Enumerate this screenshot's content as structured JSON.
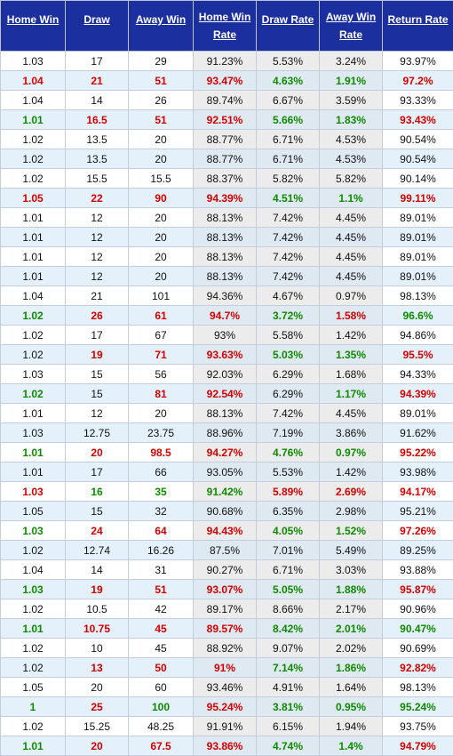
{
  "headers": [
    "Home Win",
    "Draw",
    "Away Win",
    "Home Win Rate",
    "Draw Rate",
    "Away Win Rate",
    "Return Rate"
  ],
  "colors": {
    "header_bg": "#1c2f9e",
    "red": "#d40000",
    "green": "#0f8a00",
    "row_alt": "#e4f1fb"
  },
  "rows": [
    {
      "cells": [
        "1.03",
        "17",
        "29",
        "91.23%",
        "5.53%",
        "3.24%",
        "93.97%"
      ],
      "colors": [
        "k",
        "k",
        "k",
        "k",
        "k",
        "k",
        "k"
      ]
    },
    {
      "cells": [
        "1.04",
        "21",
        "51",
        "93.47%",
        "4.63%",
        "1.91%",
        "97.2%"
      ],
      "colors": [
        "r",
        "r",
        "r",
        "r",
        "g",
        "g",
        "r"
      ]
    },
    {
      "cells": [
        "1.04",
        "14",
        "26",
        "89.74%",
        "6.67%",
        "3.59%",
        "93.33%"
      ],
      "colors": [
        "k",
        "k",
        "k",
        "k",
        "k",
        "k",
        "k"
      ]
    },
    {
      "cells": [
        "1.01",
        "16.5",
        "51",
        "92.51%",
        "5.66%",
        "1.83%",
        "93.43%"
      ],
      "colors": [
        "g",
        "r",
        "r",
        "r",
        "g",
        "g",
        "r"
      ]
    },
    {
      "cells": [
        "1.02",
        "13.5",
        "20",
        "88.77%",
        "6.71%",
        "4.53%",
        "90.54%"
      ],
      "colors": [
        "k",
        "k",
        "k",
        "k",
        "k",
        "k",
        "k"
      ]
    },
    {
      "cells": [
        "1.02",
        "13.5",
        "20",
        "88.77%",
        "6.71%",
        "4.53%",
        "90.54%"
      ],
      "colors": [
        "k",
        "k",
        "k",
        "k",
        "k",
        "k",
        "k"
      ]
    },
    {
      "cells": [
        "1.02",
        "15.5",
        "15.5",
        "88.37%",
        "5.82%",
        "5.82%",
        "90.14%"
      ],
      "colors": [
        "k",
        "k",
        "k",
        "k",
        "k",
        "k",
        "k"
      ]
    },
    {
      "cells": [
        "1.05",
        "22",
        "90",
        "94.39%",
        "4.51%",
        "1.1%",
        "99.11%"
      ],
      "colors": [
        "r",
        "r",
        "r",
        "r",
        "g",
        "g",
        "r"
      ]
    },
    {
      "cells": [
        "1.01",
        "12",
        "20",
        "88.13%",
        "7.42%",
        "4.45%",
        "89.01%"
      ],
      "colors": [
        "k",
        "k",
        "k",
        "k",
        "k",
        "k",
        "k"
      ]
    },
    {
      "cells": [
        "1.01",
        "12",
        "20",
        "88.13%",
        "7.42%",
        "4.45%",
        "89.01%"
      ],
      "colors": [
        "k",
        "k",
        "k",
        "k",
        "k",
        "k",
        "k"
      ]
    },
    {
      "cells": [
        "1.01",
        "12",
        "20",
        "88.13%",
        "7.42%",
        "4.45%",
        "89.01%"
      ],
      "colors": [
        "k",
        "k",
        "k",
        "k",
        "k",
        "k",
        "k"
      ]
    },
    {
      "cells": [
        "1.01",
        "12",
        "20",
        "88.13%",
        "7.42%",
        "4.45%",
        "89.01%"
      ],
      "colors": [
        "k",
        "k",
        "k",
        "k",
        "k",
        "k",
        "k"
      ]
    },
    {
      "cells": [
        "1.04",
        "21",
        "101",
        "94.36%",
        "4.67%",
        "0.97%",
        "98.13%"
      ],
      "colors": [
        "k",
        "k",
        "k",
        "k",
        "k",
        "k",
        "k"
      ]
    },
    {
      "cells": [
        "1.02",
        "26",
        "61",
        "94.7%",
        "3.72%",
        "1.58%",
        "96.6%"
      ],
      "colors": [
        "g",
        "r",
        "r",
        "r",
        "g",
        "r",
        "g"
      ]
    },
    {
      "cells": [
        "1.02",
        "17",
        "67",
        "93%",
        "5.58%",
        "1.42%",
        "94.86%"
      ],
      "colors": [
        "k",
        "k",
        "k",
        "k",
        "k",
        "k",
        "k"
      ]
    },
    {
      "cells": [
        "1.02",
        "19",
        "71",
        "93.63%",
        "5.03%",
        "1.35%",
        "95.5%"
      ],
      "colors": [
        "k",
        "r",
        "r",
        "r",
        "g",
        "g",
        "r"
      ]
    },
    {
      "cells": [
        "1.03",
        "15",
        "56",
        "92.03%",
        "6.29%",
        "1.68%",
        "94.33%"
      ],
      "colors": [
        "k",
        "k",
        "k",
        "k",
        "k",
        "k",
        "k"
      ]
    },
    {
      "cells": [
        "1.02",
        "15",
        "81",
        "92.54%",
        "6.29%",
        "1.17%",
        "94.39%"
      ],
      "colors": [
        "g",
        "k",
        "r",
        "r",
        "k",
        "g",
        "r"
      ]
    },
    {
      "cells": [
        "1.01",
        "12",
        "20",
        "88.13%",
        "7.42%",
        "4.45%",
        "89.01%"
      ],
      "colors": [
        "k",
        "k",
        "k",
        "k",
        "k",
        "k",
        "k"
      ]
    },
    {
      "cells": [
        "1.03",
        "12.75",
        "23.75",
        "88.96%",
        "7.19%",
        "3.86%",
        "91.62%"
      ],
      "colors": [
        "k",
        "k",
        "k",
        "k",
        "k",
        "k",
        "k"
      ]
    },
    {
      "cells": [
        "1.01",
        "20",
        "98.5",
        "94.27%",
        "4.76%",
        "0.97%",
        "95.22%"
      ],
      "colors": [
        "g",
        "r",
        "r",
        "r",
        "g",
        "g",
        "r"
      ]
    },
    {
      "cells": [
        "1.01",
        "17",
        "66",
        "93.05%",
        "5.53%",
        "1.42%",
        "93.98%"
      ],
      "colors": [
        "k",
        "k",
        "k",
        "k",
        "k",
        "k",
        "k"
      ]
    },
    {
      "cells": [
        "1.03",
        "16",
        "35",
        "91.42%",
        "5.89%",
        "2.69%",
        "94.17%"
      ],
      "colors": [
        "r",
        "g",
        "g",
        "g",
        "r",
        "r",
        "r"
      ]
    },
    {
      "cells": [
        "1.05",
        "15",
        "32",
        "90.68%",
        "6.35%",
        "2.98%",
        "95.21%"
      ],
      "colors": [
        "k",
        "k",
        "k",
        "k",
        "k",
        "k",
        "k"
      ]
    },
    {
      "cells": [
        "1.03",
        "24",
        "64",
        "94.43%",
        "4.05%",
        "1.52%",
        "97.26%"
      ],
      "colors": [
        "g",
        "r",
        "r",
        "r",
        "g",
        "g",
        "r"
      ]
    },
    {
      "cells": [
        "1.02",
        "12.74",
        "16.26",
        "87.5%",
        "7.01%",
        "5.49%",
        "89.25%"
      ],
      "colors": [
        "k",
        "k",
        "k",
        "k",
        "k",
        "k",
        "k"
      ]
    },
    {
      "cells": [
        "1.04",
        "14",
        "31",
        "90.27%",
        "6.71%",
        "3.03%",
        "93.88%"
      ],
      "colors": [
        "k",
        "k",
        "k",
        "k",
        "k",
        "k",
        "k"
      ]
    },
    {
      "cells": [
        "1.03",
        "19",
        "51",
        "93.07%",
        "5.05%",
        "1.88%",
        "95.87%"
      ],
      "colors": [
        "g",
        "r",
        "r",
        "r",
        "g",
        "g",
        "r"
      ]
    },
    {
      "cells": [
        "1.02",
        "10.5",
        "42",
        "89.17%",
        "8.66%",
        "2.17%",
        "90.96%"
      ],
      "colors": [
        "k",
        "k",
        "k",
        "k",
        "k",
        "k",
        "k"
      ]
    },
    {
      "cells": [
        "1.01",
        "10.75",
        "45",
        "89.57%",
        "8.42%",
        "2.01%",
        "90.47%"
      ],
      "colors": [
        "g",
        "r",
        "r",
        "r",
        "g",
        "g",
        "g"
      ]
    },
    {
      "cells": [
        "1.02",
        "10",
        "45",
        "88.92%",
        "9.07%",
        "2.02%",
        "90.69%"
      ],
      "colors": [
        "k",
        "k",
        "k",
        "k",
        "k",
        "k",
        "k"
      ]
    },
    {
      "cells": [
        "1.02",
        "13",
        "50",
        "91%",
        "7.14%",
        "1.86%",
        "92.82%"
      ],
      "colors": [
        "k",
        "r",
        "r",
        "r",
        "g",
        "g",
        "r"
      ]
    },
    {
      "cells": [
        "1.05",
        "20",
        "60",
        "93.46%",
        "4.91%",
        "1.64%",
        "98.13%"
      ],
      "colors": [
        "k",
        "k",
        "k",
        "k",
        "k",
        "k",
        "k"
      ]
    },
    {
      "cells": [
        "1",
        "25",
        "100",
        "95.24%",
        "3.81%",
        "0.95%",
        "95.24%"
      ],
      "colors": [
        "g",
        "r",
        "g",
        "r",
        "g",
        "g",
        "g"
      ]
    },
    {
      "cells": [
        "1.02",
        "15.25",
        "48.25",
        "91.91%",
        "6.15%",
        "1.94%",
        "93.75%"
      ],
      "colors": [
        "k",
        "k",
        "k",
        "k",
        "k",
        "k",
        "k"
      ]
    },
    {
      "cells": [
        "1.01",
        "20",
        "67.5",
        "93.86%",
        "4.74%",
        "1.4%",
        "94.79%"
      ],
      "colors": [
        "g",
        "r",
        "r",
        "r",
        "g",
        "g",
        "r"
      ]
    }
  ]
}
